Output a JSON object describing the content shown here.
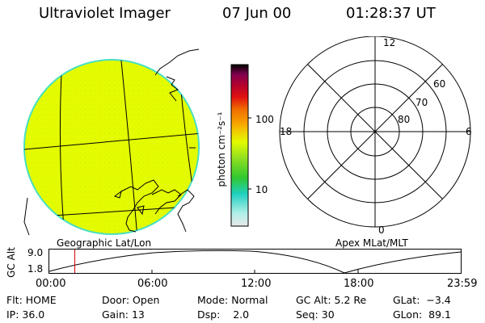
{
  "header": {
    "instrument": "Ultraviolet Imager",
    "date": "07 Jun 00",
    "time": "01:28:37 UT"
  },
  "colors": {
    "image_fill": "#e4fb00",
    "image_edge": "#48e0c0",
    "accent_marker": "#cc0000"
  },
  "colorbar": {
    "unit_label": "photon cm⁻²s⁻¹",
    "ticks": [
      "100",
      "10"
    ],
    "stops": [
      "#e8e8e8",
      "#b0f0e8",
      "#20d0c0",
      "#30c830",
      "#90e020",
      "#e4fb00",
      "#f0d000",
      "#f8a000",
      "#f07000",
      "#e01010",
      "#b00030",
      "#800050",
      "#000000"
    ]
  },
  "left_panel": {
    "caption": "Geographic Lat/Lon"
  },
  "right_panel": {
    "caption": "Apex MLat/MLT",
    "mlt_labels": {
      "top": "12",
      "left": "18",
      "right": "6",
      "bottom": "0"
    },
    "lat_labels": [
      "60",
      "70",
      "80"
    ]
  },
  "altitude_strip": {
    "axis_label": "GC Alt",
    "y_ticks": [
      "9.0",
      "1.8"
    ],
    "x_ticks": [
      "00:00",
      "06:00",
      "12:00",
      "18:00",
      "23:59"
    ],
    "current_time_fraction": 0.062
  },
  "status": {
    "filter_label": "Flt:",
    "filter_value": "HOME",
    "ip_label": "IP:",
    "ip_value": "36.0",
    "door_label": "Door:",
    "door_value": "Open",
    "gain_label": "Gain:",
    "gain_value": "13",
    "mode_label": "Mode:",
    "mode_value": "Normal",
    "dsp_label": "Dsp:",
    "dsp_value": "2.0",
    "gcalt_label": "GC Alt:",
    "gcalt_value": "5.2 Re",
    "seq_label": "Seq:",
    "seq_value": "30",
    "glat_label": "GLat:",
    "glat_value": "−3.4",
    "glon_label": "GLon:",
    "glon_value": "89.1"
  }
}
